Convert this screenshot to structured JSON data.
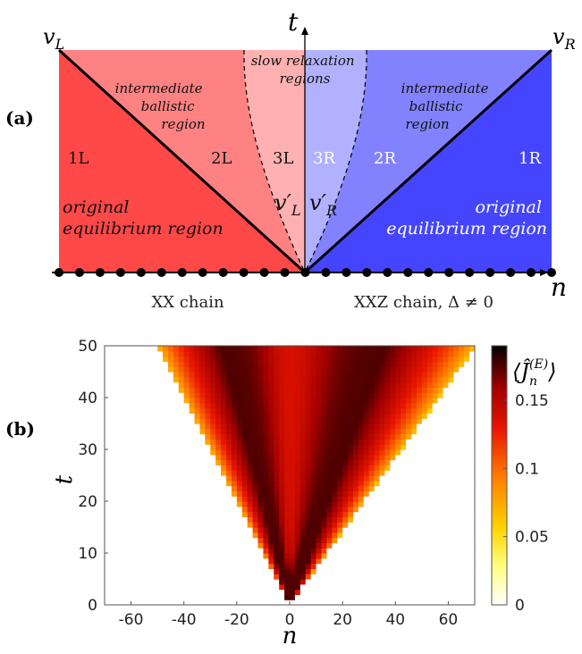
{
  "panel_a": {
    "label": "(a)",
    "t_axis": "t",
    "n_axis": "n",
    "v_left": "v",
    "v_left_sub": "L",
    "v_right": "v",
    "v_right_sub": "R",
    "vprime_left": "v′",
    "vprime_left_sub": "L",
    "vprime_right": "v′",
    "vprime_right_sub": "R",
    "region_1L": "1L",
    "region_2L": "2L",
    "region_3L": "3L",
    "region_3R": "3R",
    "region_2R": "2R",
    "region_1R": "1R",
    "slow_line1": "slow relaxation",
    "slow_line2": "regions",
    "int_l_line1": "intermediate",
    "int_l_line2": "ballistic",
    "int_l_line3": "region",
    "int_r_line1": "intermediate",
    "int_r_line2": "ballistic",
    "int_r_line3": "region",
    "orig_l_line1": "original",
    "orig_l_line2": "equilibrium region",
    "orig_r_line1": "original",
    "orig_r_line2": "equilibrium region",
    "xx_label": "XX chain",
    "xxz_label": "XXZ chain, Δ ≠ 0",
    "colors": {
      "region_1L": "#ff4848",
      "region_2L": "#ff8282",
      "region_3L": "#ffb1b1",
      "region_3R": "#b1b1ff",
      "region_2R": "#8282ff",
      "region_1R": "#4545ff"
    }
  },
  "panel_b": {
    "label": "(b)",
    "colorbar_label": "⟨Ĵ",
    "colorbar_label_sub": "n",
    "colorbar_label_sup": "(E)",
    "colorbar_label_end": "⟩"
  },
  "chart_data": {
    "type": "heatmap",
    "xlabel": "n",
    "ylabel": "t",
    "xlim": [
      -70,
      70
    ],
    "ylim": [
      0,
      50
    ],
    "x_ticks": [
      -60,
      -40,
      -20,
      0,
      20,
      40,
      60
    ],
    "y_ticks": [
      0,
      10,
      20,
      30,
      40,
      50
    ],
    "colorbar_ticks": [
      0,
      0.05,
      0.1,
      0.15
    ],
    "colorbar_range": [
      0,
      0.19
    ],
    "colormap": "hot (inverted)",
    "front_speed_left": 0.97,
    "front_speed_right": 1.36,
    "grid": false
  }
}
